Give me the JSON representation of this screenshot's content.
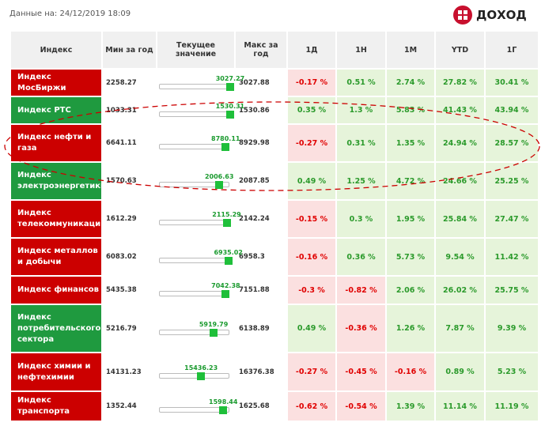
{
  "header": {
    "date": "Данные на: 24/12/2019 18:09",
    "logo": "ДОХОД"
  },
  "table": {
    "columns": [
      "Индекс",
      "Мин за год",
      "Текущее значение",
      "Макс за год",
      "1Д",
      "1Н",
      "1М",
      "YTD",
      "1Г"
    ],
    "rows": [
      [
        "Индекс МосБиржи",
        2258.27,
        3027.27,
        3027.88,
        "-0.17 %",
        "0.51 %",
        "2.74 %",
        "27.82 %",
        "30.41 %"
      ],
      [
        "Индекс РТС",
        1033.31,
        1530.31,
        1530.86,
        "0.35 %",
        "1.3 %",
        "5.83 %",
        "41.43 %",
        "43.94 %"
      ],
      [
        "Индекс нефти и газа",
        6641.11,
        8780.11,
        8929.98,
        "-0.27 %",
        "0.31 %",
        "1.35 %",
        "24.94 %",
        "28.57 %"
      ],
      [
        "Индекс электроэнергетики",
        1570.63,
        2006.63,
        2087.85,
        "0.49 %",
        "1.25 %",
        "4.72 %",
        "24.66 %",
        "25.25 %"
      ],
      [
        "Индекс телекоммуникаций",
        1612.29,
        2115.29,
        2142.24,
        "-0.15 %",
        "0.3 %",
        "1.95 %",
        "25.84 %",
        "27.47 %"
      ],
      [
        "Индекс металлов и добычи",
        6083.02,
        6935.02,
        6958.3,
        "-0.16 %",
        "0.36 %",
        "5.73 %",
        "9.54 %",
        "11.42 %"
      ],
      [
        "Индекс финансов",
        5435.38,
        7042.38,
        7151.88,
        "-0.3 %",
        "-0.82 %",
        "2.06 %",
        "26.02 %",
        "25.75 %"
      ],
      [
        "Индекс потребительского сектора",
        5216.79,
        5919.79,
        6138.89,
        "0.49 %",
        "-0.36 %",
        "1.26 %",
        "7.87 %",
        "9.39 %"
      ],
      [
        "Индекс химии и нефтехимии",
        14131.23,
        15436.23,
        16376.38,
        "-0.27 %",
        "-0.45 %",
        "-0.16 %",
        "0.89 %",
        "5.23 %"
      ],
      [
        "Индекс транспорта",
        1352.44,
        1598.44,
        1625.68,
        "-0.62 %",
        "-0.54 %",
        "1.39 %",
        "11.14 %",
        "11.19 %"
      ]
    ]
  }
}
